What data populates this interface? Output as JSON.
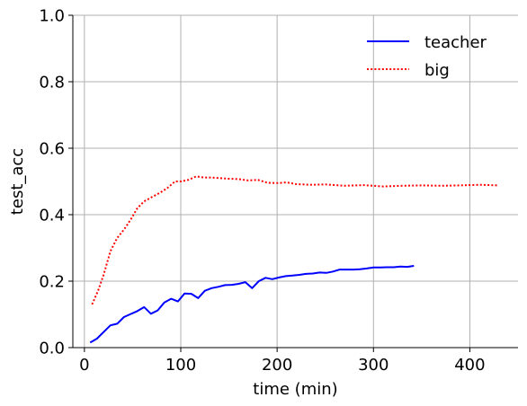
{
  "chart_data": {
    "type": "line",
    "xlabel": "time (min)",
    "ylabel": "test_acc",
    "xlim": [
      -12,
      450
    ],
    "ylim": [
      0.0,
      1.0
    ],
    "xticks": [
      0,
      100,
      200,
      300,
      400
    ],
    "xtick_labels": [
      "0",
      "100",
      "200",
      "300",
      "400"
    ],
    "yticks": [
      0.0,
      0.2,
      0.4,
      0.6,
      0.8,
      1.0
    ],
    "ytick_labels": [
      "0.0",
      "0.2",
      "0.4",
      "0.6",
      "0.8",
      "1.0"
    ],
    "grid": true,
    "legend_position": "top-right",
    "series": [
      {
        "name": "teacher",
        "color": "#0000ff",
        "style": "solid",
        "x": [
          6,
          13,
          20,
          27,
          34,
          41,
          48,
          55,
          62,
          69,
          76,
          83,
          90,
          97,
          104,
          111,
          118,
          125,
          132,
          139,
          146,
          153,
          160,
          167,
          174,
          181,
          188,
          195,
          202,
          209,
          216,
          223,
          230,
          237,
          244,
          251,
          258,
          265,
          272,
          279,
          286,
          293,
          300,
          307,
          314,
          321,
          328,
          335,
          342
        ],
        "y": [
          0.015,
          0.027,
          0.047,
          0.067,
          0.072,
          0.092,
          0.101,
          0.11,
          0.122,
          0.102,
          0.112,
          0.136,
          0.147,
          0.139,
          0.163,
          0.162,
          0.149,
          0.171,
          0.179,
          0.183,
          0.188,
          0.189,
          0.192,
          0.197,
          0.179,
          0.2,
          0.21,
          0.206,
          0.211,
          0.215,
          0.217,
          0.219,
          0.222,
          0.223,
          0.226,
          0.225,
          0.229,
          0.235,
          0.235,
          0.235,
          0.236,
          0.238,
          0.241,
          0.241,
          0.242,
          0.242,
          0.244,
          0.243,
          0.246
        ]
      },
      {
        "name": "big",
        "color": "#ff0000",
        "style": "dotted",
        "x": [
          8,
          14,
          20,
          27,
          34,
          41,
          48,
          55,
          62,
          70,
          78,
          86,
          94,
          100,
          108,
          116,
          124,
          132,
          140,
          150,
          160,
          170,
          180,
          190,
          200,
          210,
          220,
          235,
          250,
          270,
          290,
          310,
          330,
          350,
          370,
          390,
          410,
          430
        ],
        "y": [
          0.13,
          0.17,
          0.22,
          0.29,
          0.33,
          0.355,
          0.385,
          0.42,
          0.44,
          0.453,
          0.465,
          0.48,
          0.5,
          0.5,
          0.505,
          0.515,
          0.512,
          0.512,
          0.51,
          0.508,
          0.507,
          0.503,
          0.505,
          0.496,
          0.495,
          0.497,
          0.492,
          0.49,
          0.491,
          0.487,
          0.489,
          0.485,
          0.487,
          0.488,
          0.487,
          0.488,
          0.49,
          0.488
        ]
      }
    ]
  }
}
